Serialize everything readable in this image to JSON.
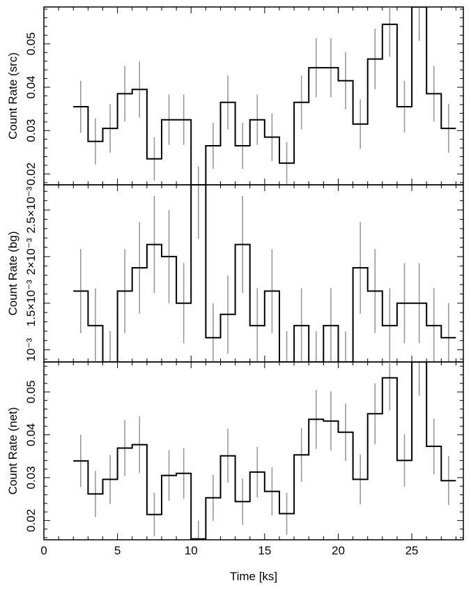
{
  "chart_data": {
    "type": "line",
    "style": "step-with-error-bars",
    "xlabel": "Time [ks]",
    "xlim": [
      0,
      28.5
    ],
    "x_ticks": [
      0,
      5,
      10,
      15,
      20,
      25
    ],
    "x_tick_labels": [
      "0",
      "5",
      "10",
      "15",
      "20",
      "25"
    ],
    "colors": {
      "line": "#000000",
      "error_bars": "#999999"
    },
    "bin_edges": [
      2,
      3,
      4,
      5,
      6,
      7,
      8,
      9,
      10,
      11,
      12,
      13,
      14,
      15,
      16,
      17,
      18,
      19,
      20,
      21,
      22,
      23,
      24,
      25,
      26,
      27,
      28
    ],
    "panels": [
      {
        "ylabel": "Count Rate (src)",
        "ylim": [
          0.0175,
          0.0585
        ],
        "y_ticks": [
          0.02,
          0.03,
          0.04,
          0.05
        ],
        "y_tick_labels": [
          "0.02",
          "0.03",
          "0.04",
          "0.05"
        ],
        "values": [
          0.0355,
          0.0275,
          0.0305,
          0.0385,
          0.0395,
          0.0235,
          0.0325,
          0.0325,
          0.0175,
          0.0265,
          0.0365,
          0.0265,
          0.0325,
          0.0285,
          0.0225,
          0.0365,
          0.0445,
          0.0445,
          0.0415,
          0.0315,
          0.0465,
          0.0545,
          0.0355,
          0.0585,
          0.0385,
          0.0305
        ],
        "errors": [
          0.006,
          0.0053,
          0.0056,
          0.0064,
          0.0065,
          0.005,
          0.0058,
          0.0058,
          0.0042,
          0.0053,
          0.0062,
          0.0053,
          0.0058,
          0.0055,
          0.0048,
          0.0062,
          0.0068,
          0.0068,
          0.0066,
          0.0057,
          0.007,
          0.0075,
          0.006,
          0.0078,
          0.0064,
          0.0056
        ]
      },
      {
        "ylabel": "Count Rate (bg)",
        "ylim": [
          0.00087,
          0.00277
        ],
        "y_ticks": [
          0.001,
          0.0015,
          0.002,
          0.0025
        ],
        "y_tick_labels": [
          "10⁻³",
          "1.5×10⁻³",
          "2×10⁻³",
          "2.5×10⁻³"
        ],
        "values": [
          0.00163,
          0.00126,
          0.00087,
          0.00163,
          0.00188,
          0.00213,
          0.002,
          0.0015,
          0.00277,
          0.00113,
          0.00138,
          0.00213,
          0.00126,
          0.00163,
          0.00087,
          0.00126,
          0.00087,
          0.00126,
          0.00087,
          0.00188,
          0.00163,
          0.00126,
          0.0015,
          0.0015,
          0.00126,
          0.00113
        ],
        "errors": [
          0.00045,
          0.0004,
          0.00033,
          0.00045,
          0.00049,
          0.00052,
          0.0005,
          0.00043,
          0.00058,
          0.00037,
          0.00042,
          0.00052,
          0.0004,
          0.00045,
          0.00033,
          0.0004,
          0.00033,
          0.0004,
          0.00033,
          0.00049,
          0.00045,
          0.0004,
          0.00043,
          0.00043,
          0.0004,
          0.00037
        ]
      },
      {
        "ylabel": "Count Rate (net)",
        "ylim": [
          0.0155,
          0.057
        ],
        "y_ticks": [
          0.02,
          0.03,
          0.04,
          0.05
        ],
        "y_tick_labels": [
          "0.02",
          "0.03",
          "0.04",
          "0.05"
        ],
        "values": [
          0.0339,
          0.0262,
          0.0296,
          0.0369,
          0.0377,
          0.0214,
          0.0305,
          0.031,
          0.0157,
          0.0253,
          0.0351,
          0.0244,
          0.0313,
          0.0268,
          0.0216,
          0.0353,
          0.0436,
          0.0432,
          0.0406,
          0.0296,
          0.0449,
          0.0533,
          0.034,
          0.057,
          0.0373,
          0.0293
        ],
        "errors": [
          0.0061,
          0.0054,
          0.0057,
          0.0065,
          0.0066,
          0.0051,
          0.0059,
          0.0059,
          0.0043,
          0.0054,
          0.0063,
          0.0054,
          0.0059,
          0.0056,
          0.0049,
          0.0063,
          0.0069,
          0.0069,
          0.0067,
          0.0058,
          0.0071,
          0.0076,
          0.0061,
          0.0079,
          0.0065,
          0.0057
        ]
      }
    ]
  }
}
